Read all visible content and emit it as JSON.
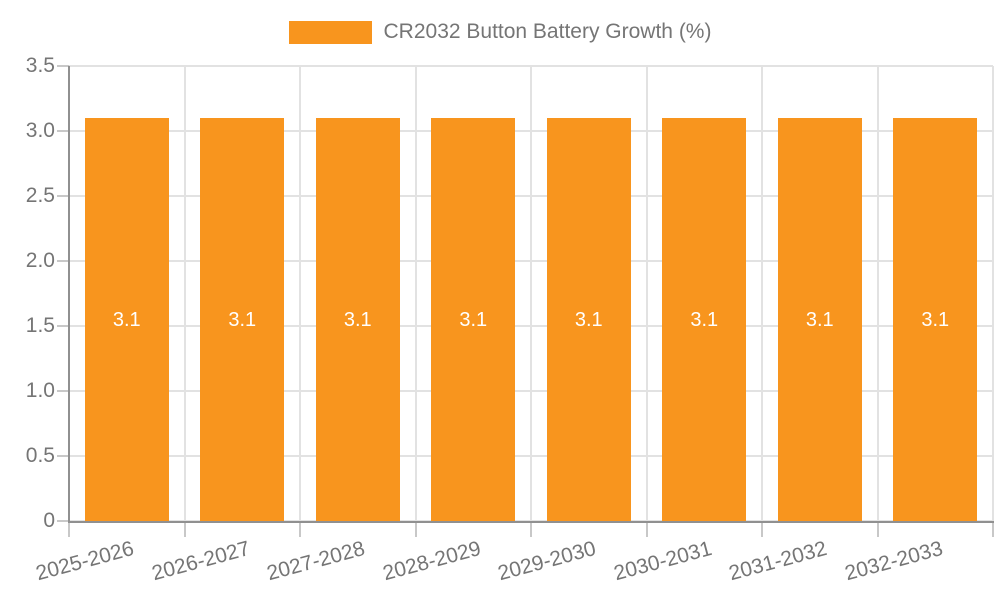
{
  "chart_data": {
    "type": "bar",
    "title": "",
    "legend": "CR2032 Button Battery Growth (%)",
    "legend_position": "top-center",
    "categories": [
      "2025-2026",
      "2026-2027",
      "2027-2028",
      "2028-2029",
      "2029-2030",
      "2030-2031",
      "2031-2032",
      "2032-2033"
    ],
    "values": [
      3.1,
      3.1,
      3.1,
      3.1,
      3.1,
      3.1,
      3.1,
      3.1
    ],
    "value_labels": [
      "3.1",
      "3.1",
      "3.1",
      "3.1",
      "3.1",
      "3.1",
      "3.1",
      "3.1"
    ],
    "xlabel": "",
    "ylabel": "",
    "ylim": [
      0,
      3.5
    ],
    "ytick_labels": [
      "0",
      "0.5",
      "1.0",
      "1.5",
      "2.0",
      "2.5",
      "3.0",
      "3.5"
    ],
    "grid": true,
    "colors": {
      "bar": "#F8951E",
      "text": "#757575",
      "grid": "#E2E2E2",
      "axis": "#909090",
      "tick": "#C8C8C8",
      "bar_label": "#FFFFFF",
      "background": "#FFFFFF"
    }
  }
}
